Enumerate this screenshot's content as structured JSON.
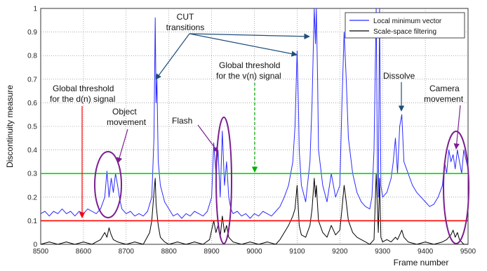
{
  "chart_data": {
    "type": "line",
    "xlabel": "Frame number",
    "ylabel": "Discontinuity measure",
    "xlim": [
      8500,
      9500
    ],
    "ylim": [
      0,
      1
    ],
    "x_ticks": [
      "8500",
      "8600",
      "8700",
      "8800",
      "8900",
      "9000",
      "9100",
      "9200",
      "9300",
      "9400",
      "9500"
    ],
    "y_ticks": [
      "0",
      "0.1",
      "0.2",
      "0.3",
      "0.4",
      "0.5",
      "0.6",
      "0.7",
      "0.8",
      "0.9",
      "1"
    ],
    "grid": true,
    "legend_position": "top-right",
    "series": [
      {
        "name": "Local minimum vector",
        "color": "#2b2bff",
        "points": [
          [
            8500,
            0.13
          ],
          [
            8510,
            0.14
          ],
          [
            8520,
            0.12
          ],
          [
            8530,
            0.14
          ],
          [
            8540,
            0.13
          ],
          [
            8550,
            0.15
          ],
          [
            8560,
            0.13
          ],
          [
            8570,
            0.14
          ],
          [
            8580,
            0.12
          ],
          [
            8590,
            0.14
          ],
          [
            8600,
            0.13
          ],
          [
            8610,
            0.15
          ],
          [
            8620,
            0.14
          ],
          [
            8630,
            0.13
          ],
          [
            8640,
            0.15
          ],
          [
            8650,
            0.2
          ],
          [
            8655,
            0.31
          ],
          [
            8660,
            0.2
          ],
          [
            8665,
            0.28
          ],
          [
            8670,
            0.22
          ],
          [
            8675,
            0.3
          ],
          [
            8680,
            0.25
          ],
          [
            8685,
            0.19
          ],
          [
            8690,
            0.15
          ],
          [
            8700,
            0.13
          ],
          [
            8710,
            0.14
          ],
          [
            8720,
            0.12
          ],
          [
            8730,
            0.13
          ],
          [
            8740,
            0.12
          ],
          [
            8750,
            0.14
          ],
          [
            8760,
            0.2
          ],
          [
            8765,
            0.45
          ],
          [
            8768,
            0.96
          ],
          [
            8770,
            0.6
          ],
          [
            8772,
            0.7
          ],
          [
            8775,
            0.35
          ],
          [
            8780,
            0.25
          ],
          [
            8790,
            0.18
          ],
          [
            8800,
            0.15
          ],
          [
            8810,
            0.12
          ],
          [
            8820,
            0.13
          ],
          [
            8830,
            0.11
          ],
          [
            8840,
            0.13
          ],
          [
            8850,
            0.12
          ],
          [
            8860,
            0.14
          ],
          [
            8870,
            0.13
          ],
          [
            8880,
            0.12
          ],
          [
            8890,
            0.14
          ],
          [
            8900,
            0.2
          ],
          [
            8905,
            0.43
          ],
          [
            8910,
            0.3
          ],
          [
            8915,
            0.4
          ],
          [
            8920,
            0.2
          ],
          [
            8925,
            0.48
          ],
          [
            8930,
            0.25
          ],
          [
            8935,
            0.35
          ],
          [
            8940,
            0.2
          ],
          [
            8945,
            0.15
          ],
          [
            8950,
            0.13
          ],
          [
            8960,
            0.14
          ],
          [
            8970,
            0.12
          ],
          [
            8980,
            0.13
          ],
          [
            8990,
            0.11
          ],
          [
            9000,
            0.13
          ],
          [
            9010,
            0.12
          ],
          [
            9020,
            0.14
          ],
          [
            9030,
            0.13
          ],
          [
            9040,
            0.12
          ],
          [
            9050,
            0.14
          ],
          [
            9060,
            0.16
          ],
          [
            9070,
            0.2
          ],
          [
            9080,
            0.25
          ],
          [
            9090,
            0.35
          ],
          [
            9095,
            0.5
          ],
          [
            9100,
            0.82
          ],
          [
            9103,
            0.6
          ],
          [
            9105,
            0.4
          ],
          [
            9110,
            0.25
          ],
          [
            9120,
            0.18
          ],
          [
            9130,
            0.35
          ],
          [
            9135,
            0.6
          ],
          [
            9140,
            1.0
          ],
          [
            9143,
            0.85
          ],
          [
            9145,
            1.0
          ],
          [
            9148,
            0.7
          ],
          [
            9150,
            0.4
          ],
          [
            9160,
            0.25
          ],
          [
            9170,
            0.18
          ],
          [
            9180,
            0.3
          ],
          [
            9190,
            0.2
          ],
          [
            9200,
            0.25
          ],
          [
            9205,
            0.6
          ],
          [
            9210,
            0.9
          ],
          [
            9215,
            0.7
          ],
          [
            9220,
            0.45
          ],
          [
            9230,
            0.3
          ],
          [
            9240,
            0.22
          ],
          [
            9250,
            0.18
          ],
          [
            9260,
            0.16
          ],
          [
            9270,
            0.15
          ],
          [
            9275,
            0.2
          ],
          [
            9280,
            0.4
          ],
          [
            9285,
            1.0
          ],
          [
            9288,
            0.3
          ],
          [
            9290,
            0.2
          ],
          [
            9293,
            1.0
          ],
          [
            9296,
            0.25
          ],
          [
            9300,
            0.2
          ],
          [
            9310,
            0.22
          ],
          [
            9320,
            0.28
          ],
          [
            9325,
            0.35
          ],
          [
            9330,
            0.45
          ],
          [
            9335,
            0.3
          ],
          [
            9340,
            0.5
          ],
          [
            9345,
            0.55
          ],
          [
            9350,
            0.35
          ],
          [
            9360,
            0.3
          ],
          [
            9370,
            0.25
          ],
          [
            9380,
            0.22
          ],
          [
            9390,
            0.2
          ],
          [
            9400,
            0.18
          ],
          [
            9410,
            0.16
          ],
          [
            9420,
            0.17
          ],
          [
            9430,
            0.2
          ],
          [
            9440,
            0.25
          ],
          [
            9445,
            0.35
          ],
          [
            9450,
            0.3
          ],
          [
            9455,
            0.4
          ],
          [
            9460,
            0.35
          ],
          [
            9465,
            0.38
          ],
          [
            9470,
            0.32
          ],
          [
            9475,
            0.4
          ],
          [
            9480,
            0.35
          ],
          [
            9485,
            0.3
          ],
          [
            9490,
            0.4
          ],
          [
            9495,
            0.36
          ],
          [
            9500,
            0.32
          ]
        ]
      },
      {
        "name": "Scale-space filtering",
        "color": "#000000",
        "points": [
          [
            8500,
            0.0
          ],
          [
            8520,
            0.01
          ],
          [
            8540,
            0.0
          ],
          [
            8560,
            0.01
          ],
          [
            8580,
            0.0
          ],
          [
            8600,
            0.01
          ],
          [
            8620,
            0.0
          ],
          [
            8640,
            0.02
          ],
          [
            8650,
            0.05
          ],
          [
            8655,
            0.03
          ],
          [
            8660,
            0.07
          ],
          [
            8665,
            0.04
          ],
          [
            8670,
            0.02
          ],
          [
            8680,
            0.01
          ],
          [
            8700,
            0.0
          ],
          [
            8720,
            0.01
          ],
          [
            8740,
            0.0
          ],
          [
            8755,
            0.05
          ],
          [
            8760,
            0.1
          ],
          [
            8765,
            0.22
          ],
          [
            8768,
            0.28
          ],
          [
            8770,
            0.17
          ],
          [
            8775,
            0.08
          ],
          [
            8780,
            0.03
          ],
          [
            8790,
            0.01
          ],
          [
            8800,
            0.0
          ],
          [
            8820,
            0.01
          ],
          [
            8840,
            0.0
          ],
          [
            8860,
            0.01
          ],
          [
            8880,
            0.0
          ],
          [
            8895,
            0.02
          ],
          [
            8905,
            0.1
          ],
          [
            8910,
            0.05
          ],
          [
            8915,
            0.08
          ],
          [
            8920,
            0.03
          ],
          [
            8925,
            0.12
          ],
          [
            8930,
            0.05
          ],
          [
            8935,
            0.08
          ],
          [
            8940,
            0.03
          ],
          [
            8950,
            0.01
          ],
          [
            8970,
            0.0
          ],
          [
            8990,
            0.01
          ],
          [
            9010,
            0.0
          ],
          [
            9030,
            0.01
          ],
          [
            9050,
            0.0
          ],
          [
            9060,
            0.02
          ],
          [
            9070,
            0.05
          ],
          [
            9080,
            0.08
          ],
          [
            9090,
            0.12
          ],
          [
            9095,
            0.15
          ],
          [
            9100,
            0.25
          ],
          [
            9103,
            0.15
          ],
          [
            9105,
            0.08
          ],
          [
            9110,
            0.04
          ],
          [
            9120,
            0.03
          ],
          [
            9130,
            0.08
          ],
          [
            9135,
            0.15
          ],
          [
            9140,
            0.28
          ],
          [
            9143,
            0.2
          ],
          [
            9145,
            0.25
          ],
          [
            9150,
            0.1
          ],
          [
            9160,
            0.05
          ],
          [
            9170,
            0.03
          ],
          [
            9180,
            0.08
          ],
          [
            9190,
            0.04
          ],
          [
            9200,
            0.06
          ],
          [
            9205,
            0.15
          ],
          [
            9210,
            0.25
          ],
          [
            9215,
            0.18
          ],
          [
            9220,
            0.1
          ],
          [
            9230,
            0.05
          ],
          [
            9240,
            0.03
          ],
          [
            9250,
            0.02
          ],
          [
            9260,
            0.01
          ],
          [
            9270,
            0.0
          ],
          [
            9280,
            0.02
          ],
          [
            9285,
            0.3
          ],
          [
            9290,
            0.05
          ],
          [
            9293,
            0.28
          ],
          [
            9296,
            0.03
          ],
          [
            9300,
            0.01
          ],
          [
            9310,
            0.02
          ],
          [
            9320,
            0.01
          ],
          [
            9330,
            0.03
          ],
          [
            9335,
            0.02
          ],
          [
            9340,
            0.04
          ],
          [
            9345,
            0.06
          ],
          [
            9350,
            0.03
          ],
          [
            9360,
            0.01
          ],
          [
            9380,
            0.0
          ],
          [
            9400,
            0.01
          ],
          [
            9420,
            0.0
          ],
          [
            9440,
            0.01
          ],
          [
            9450,
            0.02
          ],
          [
            9460,
            0.04
          ],
          [
            9465,
            0.06
          ],
          [
            9470,
            0.03
          ],
          [
            9475,
            0.05
          ],
          [
            9480,
            0.02
          ],
          [
            9490,
            0.0
          ],
          [
            9500,
            0.0
          ]
        ]
      }
    ],
    "threshold_lines": [
      {
        "name": "d-threshold",
        "y": 0.1,
        "color": "#ff0000"
      },
      {
        "name": "v-threshold",
        "y": 0.3,
        "color": "#00dd00"
      }
    ],
    "annotations": {
      "cut_transitions_line1": "CUT",
      "cut_transitions_line2": "transitions",
      "global_d_line1": "Global threshold",
      "global_d_line2": "for the d(n) signal",
      "global_v_line1": "Global threshold",
      "global_v_line2": "for the v(n) signal",
      "object_movement_line1": "Object",
      "object_movement_line2": "movement",
      "flash": "Flash",
      "dissolve": "Dissolve",
      "camera_movement_line1": "Camera",
      "camera_movement_line2": "movement"
    },
    "annotation_colors": {
      "arrow": "#1f4e79",
      "ellipse": "#7b1f8f",
      "red_arrow": "#ff0000",
      "green_arrow": "#00b000"
    }
  }
}
